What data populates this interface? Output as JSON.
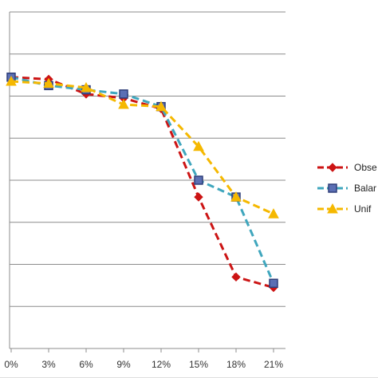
{
  "chart_data": {
    "type": "line",
    "categories": [
      "0%",
      "3%",
      "6%",
      "9%",
      "12%",
      "15%",
      "18%",
      "21%"
    ],
    "ylim": [
      0,
      8
    ],
    "grid": true,
    "legend_position": "right",
    "series": [
      {
        "name": "Obse",
        "color": "#cc1414",
        "marker": "diamond",
        "values": [
          6.45,
          6.4,
          6.05,
          5.95,
          5.7,
          3.6,
          1.7,
          1.45
        ]
      },
      {
        "name": "Balar",
        "color": "#3fa6bd",
        "marker": "square",
        "values": [
          6.45,
          6.25,
          6.15,
          6.05,
          5.75,
          4.0,
          3.6,
          1.55
        ]
      },
      {
        "name": "Unif",
        "color": "#f5b800",
        "marker": "triangle",
        "values": [
          6.35,
          6.3,
          6.2,
          5.8,
          5.75,
          4.8,
          3.6,
          3.2
        ]
      }
    ]
  }
}
